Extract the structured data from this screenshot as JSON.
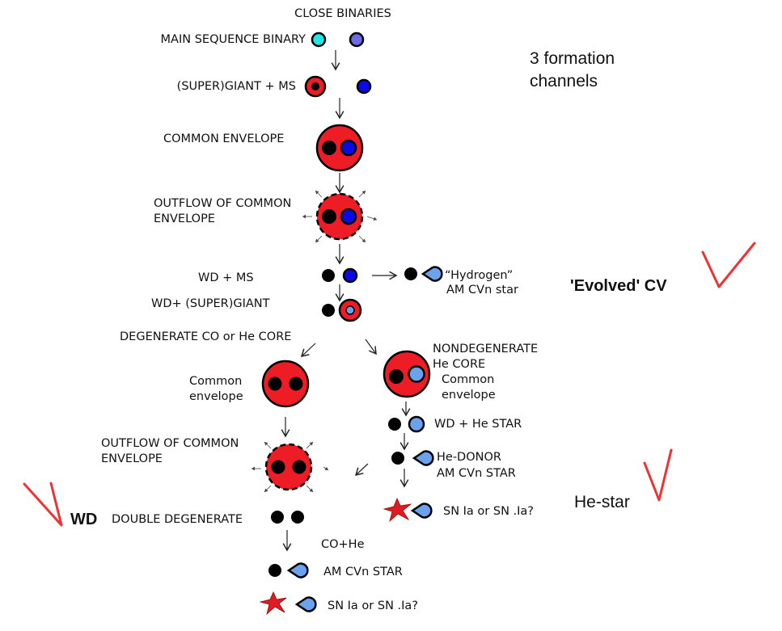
{
  "title": "CLOSE BINARIES",
  "side_note": [
    "3 formation",
    "channels"
  ],
  "colors": {
    "red": "#ee1c24",
    "cyan": "#22e6e6",
    "lavender": "#6b6be8",
    "blue": "#0a0ae6",
    "light_blue": "#6aa2ee",
    "check": "#ee3333"
  },
  "labels": {
    "ms_binary": "MAIN SEQUENCE BINARY",
    "giant_ms": "(SUPER)GIANT + MS",
    "common_envelope": "COMMON ENVELOPE",
    "outflow1": [
      "OUTFLOW OF COMMON",
      "ENVELOPE"
    ],
    "wd_ms": "WD + MS",
    "hydrogen_amcvn": [
      "“Hydrogen”",
      "AM CVn star"
    ],
    "evolved_cv": "'Evolved' CV",
    "wd_giant": "WD+ (SUPER)GIANT",
    "degenerate_core": "DEGENERATE  CO or He CORE",
    "common_env_left": [
      "Common",
      "envelope"
    ],
    "nondegenerate": [
      "NONDEGENERATE",
      "He CORE",
      "Common",
      "envelope"
    ],
    "outflow2": [
      "OUTFLOW OF COMMON",
      "ENVELOPE"
    ],
    "wd_he_star": "WD + He STAR",
    "he_donor": [
      "He-DONOR",
      "AM CVn STAR"
    ],
    "sn_right": "SN Ia or SN .Ia?",
    "he_star": "He-star",
    "wd": "WD",
    "double_degenerate": "DOUBLE DEGENERATE",
    "co_he": "CO+He",
    "am_cvn": "AM CVn STAR",
    "sn_bottom": "SN Ia or SN .Ia?"
  },
  "annotations": {
    "checkmarks": [
      "evolved-cv",
      "he-star",
      "wd"
    ]
  }
}
